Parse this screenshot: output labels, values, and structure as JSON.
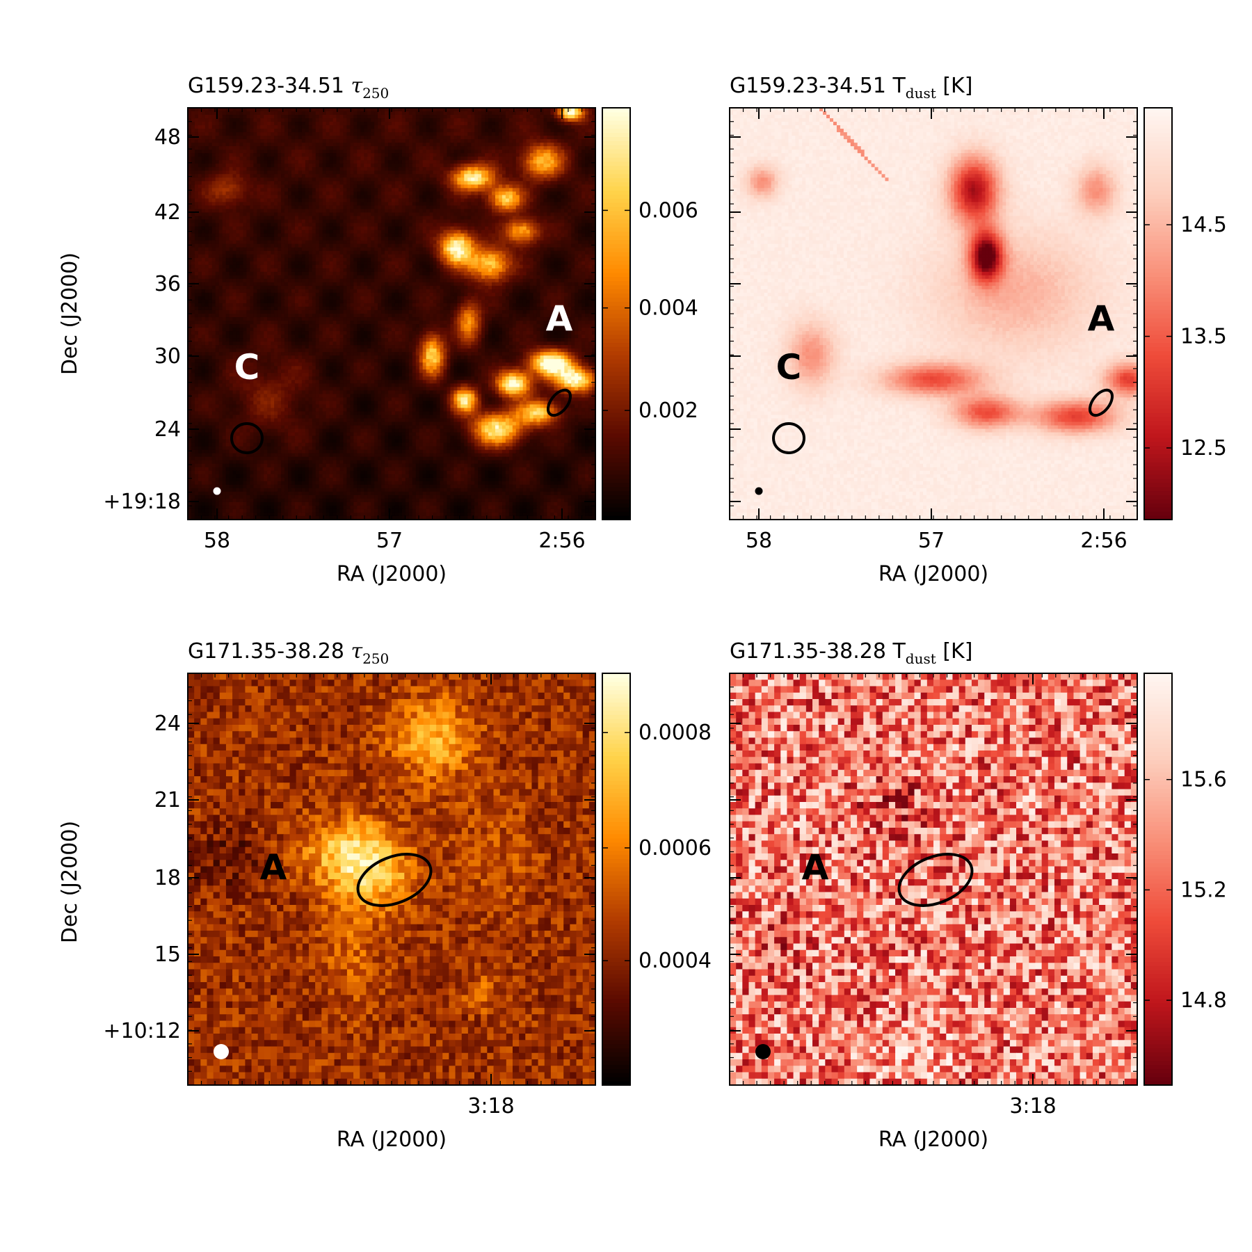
{
  "figure": {
    "panels": [
      {
        "id": "p1",
        "title_prefix": "G159.23-34.51 ",
        "title_symbol": "τ",
        "title_sub": "250",
        "title_suffix": "",
        "xlabel": "RA (J2000)",
        "ylabel": "Dec (J2000)",
        "xticks": [
          "58",
          "57",
          "2:56"
        ],
        "yticks": [
          "48",
          "42",
          "36",
          "30",
          "24",
          "+19:18"
        ],
        "colorbar_ticks": [
          "0.006",
          "0.004",
          "0.002"
        ],
        "colormap": [
          "#000000",
          "#5a0a00",
          "#b23b00",
          "#ff8a00",
          "#ffd34a",
          "#ffffe0"
        ],
        "regions": [
          {
            "label": "C",
            "label_color": "#ffffff"
          },
          {
            "label": "A",
            "label_color": "#ffffff"
          }
        ],
        "beam_color": "#ffffff",
        "ellipse_color": "#000000"
      },
      {
        "id": "p2",
        "title_prefix": "G159.23-34.51 T",
        "title_symbol": "",
        "title_sub": "dust",
        "title_suffix": " [K]",
        "xlabel": "RA (J2000)",
        "ylabel": "",
        "xticks": [
          "58",
          "57",
          "2:56"
        ],
        "yticks": [],
        "colorbar_ticks": [
          "14.5",
          "13.5",
          "12.5"
        ],
        "colormap": [
          "#67000d",
          "#c0161c",
          "#ef4c3a",
          "#f9917a",
          "#fdd0bf",
          "#fff5f0"
        ],
        "regions": [
          {
            "label": "C",
            "label_color": "#000000"
          },
          {
            "label": "A",
            "label_color": "#000000"
          }
        ],
        "beam_color": "#000000",
        "ellipse_color": "#000000"
      },
      {
        "id": "p3",
        "title_prefix": "G171.35-38.28 ",
        "title_symbol": "τ",
        "title_sub": "250",
        "title_suffix": "",
        "xlabel": "RA (J2000)",
        "ylabel": "Dec (J2000)",
        "xticks": [
          "3:18"
        ],
        "yticks": [
          "24",
          "21",
          "18",
          "15",
          "+10:12"
        ],
        "colorbar_ticks": [
          "0.0008",
          "0.0006",
          "0.0004"
        ],
        "colormap": [
          "#000000",
          "#5a0a00",
          "#b23b00",
          "#ff8a00",
          "#ffd34a",
          "#ffffe0"
        ],
        "regions": [
          {
            "label": "A",
            "label_color": "#000000"
          }
        ],
        "beam_color": "#ffffff",
        "ellipse_color": "#000000"
      },
      {
        "id": "p4",
        "title_prefix": "G171.35-38.28 T",
        "title_symbol": "",
        "title_sub": "dust",
        "title_suffix": " [K]",
        "xlabel": "RA (J2000)",
        "ylabel": "",
        "xticks": [
          "3:18"
        ],
        "yticks": [],
        "colorbar_ticks": [
          "15.6",
          "15.2",
          "14.8"
        ],
        "colormap": [
          "#67000d",
          "#c0161c",
          "#ef4c3a",
          "#f9917a",
          "#fdd0bf",
          "#fff5f0"
        ],
        "regions": [
          {
            "label": "A",
            "label_color": "#000000"
          }
        ],
        "beam_color": "#000000",
        "ellipse_color": "#000000"
      }
    ]
  },
  "chart_data": [
    {
      "type": "heatmap",
      "title": "G159.23-34.51 τ250",
      "quantity": "τ250",
      "xlabel": "RA (J2000)",
      "ylabel": "Dec (J2000)",
      "x_tick_labels": [
        "58",
        "57",
        "2:56"
      ],
      "y_tick_labels": [
        "48",
        "42",
        "36",
        "30",
        "24",
        "+19:18"
      ],
      "colorbar_ticks": [
        0.006,
        0.004,
        0.002
      ],
      "colorbar_range": [
        0.0,
        0.0079
      ],
      "colormap": "afmhot",
      "labels": [
        "C",
        "A"
      ]
    },
    {
      "type": "heatmap",
      "title": "G159.23-34.51 Tdust [K]",
      "quantity": "Tdust",
      "unit": "K",
      "xlabel": "RA (J2000)",
      "ylabel": "",
      "x_tick_labels": [
        "58",
        "57",
        "2:56"
      ],
      "colorbar_ticks": [
        14.5,
        13.5,
        12.5
      ],
      "colorbar_range": [
        12.0,
        15.2
      ],
      "colormap": "Reds_r",
      "labels": [
        "C",
        "A"
      ]
    },
    {
      "type": "heatmap",
      "title": "G171.35-38.28 τ250",
      "quantity": "τ250",
      "xlabel": "RA (J2000)",
      "ylabel": "Dec (J2000)",
      "x_tick_labels": [
        "3:18"
      ],
      "y_tick_labels": [
        "24",
        "21",
        "18",
        "15",
        "+10:12"
      ],
      "colorbar_ticks": [
        0.0008,
        0.0006,
        0.0004
      ],
      "colorbar_range": [
        0.0002,
        0.00089
      ],
      "colormap": "afmhot",
      "labels": [
        "A"
      ]
    },
    {
      "type": "heatmap",
      "title": "G171.35-38.28 Tdust [K]",
      "quantity": "Tdust",
      "unit": "K",
      "xlabel": "RA (J2000)",
      "ylabel": "",
      "x_tick_labels": [
        "3:18"
      ],
      "colorbar_ticks": [
        15.6,
        15.2,
        14.8
      ],
      "colorbar_range": [
        14.5,
        15.95
      ],
      "colormap": "Reds_r",
      "labels": [
        "A"
      ]
    }
  ]
}
